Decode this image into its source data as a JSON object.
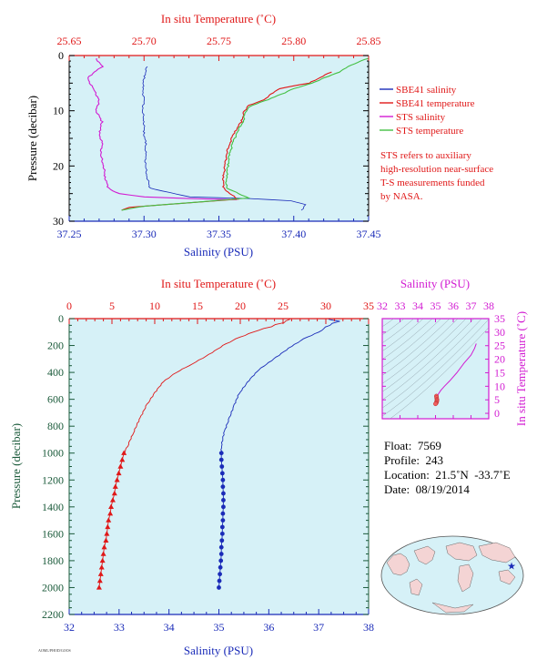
{
  "colors": {
    "plot_bg": "#d6f1f7",
    "salinity": "#1a2bb8",
    "temperature": "#e01818",
    "sts_salinity": "#d21cd2",
    "sts_temperature": "#44c044",
    "pressure_axis": "#1a5a3a",
    "ts_axis": "#d21cd2",
    "note": "#e01818"
  },
  "chart_data": [
    {
      "type": "line",
      "panel": "near-surface",
      "xlabel_top": "In situ Temperature (˚C)",
      "xlabel_bottom": "Salinity (PSU)",
      "ylabel": "Pressure (decibar)",
      "top_ticks": [
        "25.65",
        "25.70",
        "25.75",
        "25.80",
        "25.85"
      ],
      "top_tick_values": [
        25.65,
        25.7,
        25.75,
        25.8,
        25.85
      ],
      "bottom_ticks": [
        "37.25",
        "37.30",
        "37.35",
        "37.40",
        "37.45"
      ],
      "bottom_tick_values": [
        37.25,
        37.3,
        37.35,
        37.4,
        37.45
      ],
      "y_ticks": [
        "0",
        "10",
        "20",
        "30"
      ],
      "y_tick_values": [
        0,
        10,
        20,
        30
      ],
      "xlim_salinity": [
        37.25,
        37.45
      ],
      "xlim_temperature": [
        25.65,
        25.85
      ],
      "ylim": [
        0,
        30
      ],
      "legend_position": "right",
      "legend": [
        {
          "name": "SBE41 salinity",
          "color_key": "salinity"
        },
        {
          "name": "SBE41 temperature",
          "color_key": "temperature"
        },
        {
          "name": "STS salinity",
          "color_key": "sts_salinity"
        },
        {
          "name": "STS temperature",
          "color_key": "sts_temperature"
        }
      ],
      "note": [
        "STS refers to auxiliary",
        "high-resolution near-surface",
        "T-S measurements funded",
        "by NASA."
      ],
      "series": [
        {
          "name": "STS salinity",
          "axis": "salinity",
          "color_key": "sts_salinity",
          "points": [
            [
              37.268,
              0.5
            ],
            [
              37.272,
              2
            ],
            [
              37.262,
              4
            ],
            [
              37.266,
              6
            ],
            [
              37.27,
              8
            ],
            [
              37.268,
              10
            ],
            [
              37.272,
              12
            ],
            [
              37.27,
              14
            ],
            [
              37.272,
              16
            ],
            [
              37.271,
              18
            ],
            [
              37.273,
              20
            ],
            [
              37.274,
              22
            ],
            [
              37.276,
              24
            ],
            [
              37.283,
              25
            ],
            [
              37.3,
              25.6
            ],
            [
              37.33,
              25.9
            ],
            [
              37.362,
              26.1
            ]
          ]
        },
        {
          "name": "SBE41 salinity",
          "axis": "salinity",
          "color_key": "salinity",
          "points": [
            [
              37.302,
              2
            ],
            [
              37.3,
              4
            ],
            [
              37.299,
              6
            ],
            [
              37.3,
              8
            ],
            [
              37.299,
              10
            ],
            [
              37.3,
              12
            ],
            [
              37.3,
              14
            ],
            [
              37.301,
              16
            ],
            [
              37.301,
              18
            ],
            [
              37.301,
              20
            ],
            [
              37.302,
              22
            ],
            [
              37.304,
              24
            ],
            [
              37.33,
              25.6
            ],
            [
              37.37,
              25.9
            ],
            [
              37.398,
              26.3
            ],
            [
              37.408,
              27
            ],
            [
              37.405,
              28
            ]
          ]
        },
        {
          "name": "SBE41 temperature",
          "axis": "temperature",
          "color_key": "temperature",
          "points": [
            [
              25.825,
              3
            ],
            [
              25.81,
              5
            ],
            [
              25.79,
              6
            ],
            [
              25.78,
              8
            ],
            [
              25.77,
              9
            ],
            [
              25.767,
              10
            ],
            [
              25.765,
              12
            ],
            [
              25.76,
              14
            ],
            [
              25.757,
              16
            ],
            [
              25.755,
              18
            ],
            [
              25.754,
              20
            ],
            [
              25.753,
              22
            ],
            [
              25.753,
              24
            ],
            [
              25.762,
              26
            ],
            [
              25.69,
              27.5
            ],
            [
              25.685,
              28
            ]
          ]
        },
        {
          "name": "STS temperature",
          "axis": "temperature",
          "color_key": "sts_temperature",
          "points": [
            [
              25.85,
              0.5
            ],
            [
              25.84,
              1.5
            ],
            [
              25.83,
              3
            ],
            [
              25.812,
              5
            ],
            [
              25.8,
              6
            ],
            [
              25.783,
              8
            ],
            [
              25.772,
              9
            ],
            [
              25.768,
              10
            ],
            [
              25.766,
              12
            ],
            [
              25.762,
              14
            ],
            [
              25.759,
              16
            ],
            [
              25.757,
              18
            ],
            [
              25.756,
              20
            ],
            [
              25.755,
              22
            ],
            [
              25.755,
              24
            ],
            [
              25.77,
              25.8
            ],
            [
              25.7,
              27.3
            ],
            [
              25.685,
              28
            ]
          ]
        }
      ]
    },
    {
      "type": "line",
      "panel": "full-profile",
      "xlabel_top": "In situ Temperature (˚C)",
      "xlabel_bottom": "Salinity (PSU)",
      "ylabel": "Pressure (decibar)",
      "top_ticks": [
        "0",
        "5",
        "10",
        "15",
        "20",
        "25",
        "30",
        "35"
      ],
      "top_tick_values": [
        0,
        5,
        10,
        15,
        20,
        25,
        30,
        35
      ],
      "bottom_ticks": [
        "32",
        "33",
        "34",
        "35",
        "36",
        "37",
        "38"
      ],
      "bottom_tick_values": [
        32,
        33,
        34,
        35,
        36,
        37,
        38
      ],
      "y_ticks": [
        "0",
        "200",
        "400",
        "600",
        "800",
        "1000",
        "1200",
        "1400",
        "1600",
        "1800",
        "2000",
        "2200"
      ],
      "y_tick_values": [
        0,
        200,
        400,
        600,
        800,
        1000,
        1200,
        1400,
        1600,
        1800,
        2000,
        2200
      ],
      "xlim_salinity": [
        32,
        38
      ],
      "xlim_temperature": [
        0,
        35
      ],
      "ylim": [
        0,
        2200
      ],
      "temperature_profile": [
        [
          25.8,
          5
        ],
        [
          25.0,
          30
        ],
        [
          23.5,
          60
        ],
        [
          21.5,
          100
        ],
        [
          19.5,
          150
        ],
        [
          18.0,
          200
        ],
        [
          16.0,
          280
        ],
        [
          14.0,
          350
        ],
        [
          12.5,
          400
        ],
        [
          11.0,
          470
        ],
        [
          10.0,
          550
        ],
        [
          9.0,
          650
        ],
        [
          8.2,
          750
        ],
        [
          7.5,
          850
        ],
        [
          6.8,
          950
        ],
        [
          6.4,
          1000
        ]
      ],
      "temperature_points": [
        [
          6.4,
          1000
        ],
        [
          6.2,
          1050
        ],
        [
          6.0,
          1100
        ],
        [
          5.8,
          1150
        ],
        [
          5.6,
          1200
        ],
        [
          5.4,
          1250
        ],
        [
          5.3,
          1300
        ],
        [
          5.1,
          1350
        ],
        [
          4.9,
          1400
        ],
        [
          4.8,
          1450
        ],
        [
          4.6,
          1500
        ],
        [
          4.5,
          1550
        ],
        [
          4.4,
          1600
        ],
        [
          4.3,
          1650
        ],
        [
          4.1,
          1700
        ],
        [
          4.0,
          1750
        ],
        [
          3.9,
          1800
        ],
        [
          3.8,
          1850
        ],
        [
          3.7,
          1900
        ],
        [
          3.6,
          1950
        ],
        [
          3.5,
          2000
        ]
      ],
      "salinity_profile": [
        [
          37.2,
          5
        ],
        [
          37.4,
          20
        ],
        [
          37.2,
          50
        ],
        [
          37.0,
          100
        ],
        [
          36.7,
          150
        ],
        [
          36.4,
          220
        ],
        [
          36.1,
          300
        ],
        [
          35.8,
          380
        ],
        [
          35.6,
          460
        ],
        [
          35.4,
          560
        ],
        [
          35.3,
          650
        ],
        [
          35.2,
          750
        ],
        [
          35.1,
          850
        ],
        [
          35.05,
          950
        ],
        [
          35.05,
          1000
        ]
      ],
      "salinity_points": [
        [
          35.05,
          1000
        ],
        [
          35.05,
          1050
        ],
        [
          35.06,
          1100
        ],
        [
          35.07,
          1150
        ],
        [
          35.08,
          1200
        ],
        [
          35.08,
          1250
        ],
        [
          35.09,
          1300
        ],
        [
          35.09,
          1350
        ],
        [
          35.09,
          1400
        ],
        [
          35.08,
          1450
        ],
        [
          35.08,
          1500
        ],
        [
          35.07,
          1550
        ],
        [
          35.07,
          1600
        ],
        [
          35.06,
          1650
        ],
        [
          35.05,
          1700
        ],
        [
          35.05,
          1750
        ],
        [
          35.04,
          1800
        ],
        [
          35.03,
          1850
        ],
        [
          35.02,
          1900
        ],
        [
          35.01,
          1950
        ],
        [
          35.0,
          2000
        ]
      ]
    },
    {
      "type": "scatter",
      "panel": "ts-diagram",
      "xlabel_top": "Salinity (PSU)",
      "ylabel_right": "In situ Temperature (˚C)",
      "top_ticks": [
        "32",
        "33",
        "34",
        "35",
        "36",
        "37",
        "38"
      ],
      "top_tick_values": [
        32,
        33,
        34,
        35,
        36,
        37,
        38
      ],
      "right_ticks": [
        "0",
        "5",
        "10",
        "15",
        "20",
        "25",
        "30",
        "35"
      ],
      "right_tick_values": [
        0,
        5,
        10,
        15,
        20,
        25,
        30,
        35
      ],
      "xlim": [
        32,
        38
      ],
      "ylim": [
        -2,
        35
      ],
      "ts_curve": [
        [
          37.3,
          25.8
        ],
        [
          37.2,
          24
        ],
        [
          37.0,
          21.5
        ],
        [
          36.6,
          18.5
        ],
        [
          36.2,
          15
        ],
        [
          35.8,
          12
        ],
        [
          35.5,
          10
        ],
        [
          35.3,
          8.5
        ],
        [
          35.15,
          7
        ],
        [
          35.08,
          5.5
        ],
        [
          35.05,
          4.5
        ],
        [
          35.0,
          3.5
        ]
      ],
      "ts_points": [
        [
          35.05,
          6.4
        ],
        [
          35.06,
          5.8
        ],
        [
          35.08,
          5.2
        ],
        [
          35.08,
          4.8
        ],
        [
          35.07,
          4.4
        ],
        [
          35.05,
          4.0
        ],
        [
          35.03,
          3.7
        ],
        [
          35.0,
          3.5
        ]
      ]
    }
  ],
  "float_info": {
    "float": "Float:  7569",
    "profile": "Profile:  243",
    "location": "Location:  21.5˚N  -33.7˚E",
    "date": "Date:  08/19/2014"
  },
  "map": {
    "marker_icon": "star-icon",
    "marker_lat": 21.5,
    "marker_lon": -33.7
  },
  "footer_tag": "AOML/PHOD/GOOS"
}
